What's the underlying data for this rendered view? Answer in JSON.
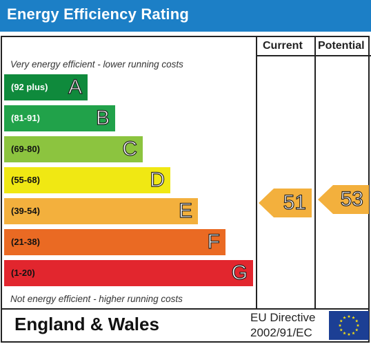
{
  "header": {
    "title": "Energy Efficiency Rating"
  },
  "columns": {
    "current": "Current",
    "potential": "Potential"
  },
  "captions": {
    "top": "Very energy efficient - lower running costs",
    "bottom": "Not energy efficient - higher running costs"
  },
  "bands": [
    {
      "range": "(92 plus)",
      "letter": "A",
      "color": "#0f8a3c"
    },
    {
      "range": "(81-91)",
      "letter": "B",
      "color": "#21a24a"
    },
    {
      "range": "(69-80)",
      "letter": "C",
      "color": "#8cc43f"
    },
    {
      "range": "(55-68)",
      "letter": "D",
      "color": "#f0e813"
    },
    {
      "range": "(39-54)",
      "letter": "E",
      "color": "#f3b03d"
    },
    {
      "range": "(21-38)",
      "letter": "F",
      "color": "#ea6a23"
    },
    {
      "range": "(1-20)",
      "letter": "G",
      "color": "#e2262e"
    }
  ],
  "ratings": {
    "current": {
      "value": "51",
      "band": "E",
      "color": "#f3b03d"
    },
    "potential": {
      "value": "53",
      "band": "E",
      "color": "#f3b03d"
    }
  },
  "footer": {
    "region": "England & Wales",
    "directive_line1": "EU Directive",
    "directive_line2": "2002/91/EC",
    "flag_color": "#1c3f94",
    "star_color": "#f8e112"
  }
}
